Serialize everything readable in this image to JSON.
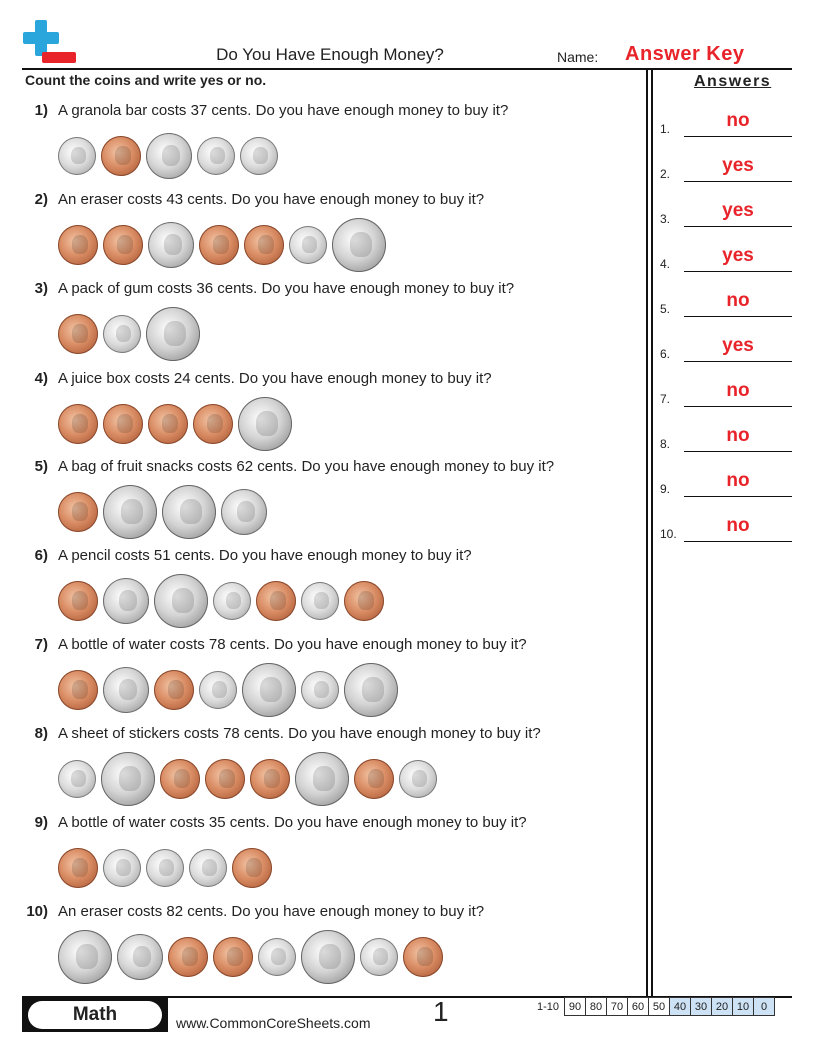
{
  "header": {
    "title": "Do You Have Enough Money?",
    "name_label": "Name:",
    "answer_key": "Answer Key",
    "instructions": "Count the coins and write yes or no."
  },
  "answers_panel": {
    "title": "Answers",
    "items": [
      {
        "num": "1.",
        "value": "no"
      },
      {
        "num": "2.",
        "value": "yes"
      },
      {
        "num": "3.",
        "value": "yes"
      },
      {
        "num": "4.",
        "value": "yes"
      },
      {
        "num": "5.",
        "value": "no"
      },
      {
        "num": "6.",
        "value": "yes"
      },
      {
        "num": "7.",
        "value": "no"
      },
      {
        "num": "8.",
        "value": "no"
      },
      {
        "num": "9.",
        "value": "no"
      },
      {
        "num": "10.",
        "value": "no"
      }
    ]
  },
  "questions": [
    {
      "num": "1)",
      "text": "A granola bar costs 37 cents. Do you have enough money to buy it?",
      "coins": [
        "dime",
        "penny",
        "nickel",
        "dime",
        "dime"
      ]
    },
    {
      "num": "2)",
      "text": "An eraser costs 43 cents. Do you have enough money to buy it?",
      "coins": [
        "penny",
        "penny",
        "nickel",
        "penny",
        "penny",
        "dime",
        "quarter"
      ]
    },
    {
      "num": "3)",
      "text": "A pack of gum costs 36 cents. Do you have enough money to buy it?",
      "coins": [
        "penny",
        "dime",
        "quarter"
      ]
    },
    {
      "num": "4)",
      "text": "A juice box costs 24 cents. Do you have enough money to buy it?",
      "coins": [
        "penny",
        "penny",
        "penny",
        "penny",
        "quarter"
      ]
    },
    {
      "num": "5)",
      "text": "A bag of fruit snacks costs 62 cents. Do you have enough money to buy it?",
      "coins": [
        "penny",
        "quarter",
        "quarter",
        "nickel"
      ]
    },
    {
      "num": "6)",
      "text": "A pencil costs 51 cents. Do you have enough money to buy it?",
      "coins": [
        "penny",
        "nickel",
        "quarter",
        "dime",
        "penny",
        "dime",
        "penny"
      ]
    },
    {
      "num": "7)",
      "text": "A bottle of water costs 78 cents. Do you have enough money to buy it?",
      "coins": [
        "penny",
        "nickel",
        "penny",
        "dime",
        "quarter",
        "dime",
        "quarter"
      ]
    },
    {
      "num": "8)",
      "text": "A sheet of stickers costs 78 cents. Do you have enough money to buy it?",
      "coins": [
        "dime",
        "quarter",
        "penny",
        "penny",
        "penny",
        "quarter",
        "penny",
        "dime"
      ]
    },
    {
      "num": "9)",
      "text": "A bottle of water costs 35 cents. Do you have enough money to buy it?",
      "coins": [
        "penny",
        "dime",
        "dime",
        "dime",
        "penny"
      ]
    },
    {
      "num": "10)",
      "text": "An eraser costs 82 cents. Do you have enough money to buy it?",
      "coins": [
        "quarter",
        "nickel",
        "penny",
        "penny",
        "dime",
        "quarter",
        "dime",
        "penny"
      ]
    }
  ],
  "footer": {
    "subject": "Math",
    "website": "www.CommonCoreSheets.com",
    "page": "1",
    "score_label": "1-10",
    "scores": [
      "90",
      "80",
      "70",
      "60",
      "50",
      "40",
      "30",
      "20",
      "10",
      "0"
    ]
  }
}
